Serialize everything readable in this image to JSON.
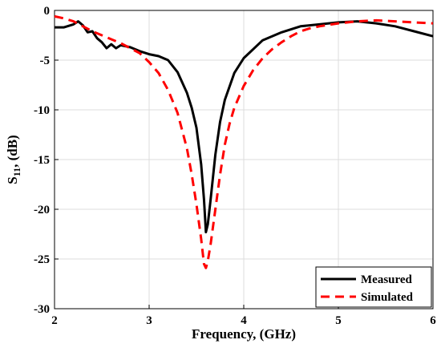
{
  "chart_data": {
    "type": "line",
    "xlabel": "Frequency, (GHz)",
    "ylabel": {
      "base": "S",
      "sub": "11",
      "rest": ", (dB)"
    },
    "xlim": [
      2,
      6
    ],
    "ylim": [
      -30,
      0
    ],
    "xticks": [
      2,
      3,
      4,
      5,
      6
    ],
    "yticks": [
      0,
      -5,
      -10,
      -15,
      -20,
      -25,
      -30
    ],
    "grid": true,
    "legend_position": "bottom-right",
    "series": [
      {
        "name": "Measured",
        "color": "#000000",
        "style": "solid",
        "x": [
          2.0,
          2.1,
          2.2,
          2.25,
          2.3,
          2.35,
          2.4,
          2.45,
          2.5,
          2.55,
          2.6,
          2.65,
          2.7,
          2.8,
          2.9,
          3.0,
          3.1,
          3.2,
          3.3,
          3.4,
          3.45,
          3.5,
          3.55,
          3.58,
          3.6,
          3.62,
          3.65,
          3.7,
          3.75,
          3.8,
          3.9,
          4.0,
          4.2,
          4.4,
          4.6,
          4.8,
          5.0,
          5.2,
          5.4,
          5.6,
          5.8,
          6.0
        ],
        "y": [
          -1.7,
          -1.7,
          -1.4,
          -1.1,
          -1.5,
          -2.2,
          -2.1,
          -2.8,
          -3.2,
          -3.8,
          -3.4,
          -3.8,
          -3.5,
          -3.7,
          -4.1,
          -4.4,
          -4.6,
          -5.0,
          -6.2,
          -8.3,
          -9.8,
          -11.8,
          -15.5,
          -19.0,
          -22.3,
          -21.5,
          -19.0,
          -14.5,
          -11.2,
          -9.0,
          -6.3,
          -4.8,
          -3.0,
          -2.2,
          -1.6,
          -1.4,
          -1.2,
          -1.1,
          -1.3,
          -1.6,
          -2.1,
          -2.6
        ]
      },
      {
        "name": "Simulated",
        "color": "#ff0000",
        "style": "dashed",
        "x": [
          2.0,
          2.1,
          2.2,
          2.3,
          2.4,
          2.5,
          2.6,
          2.7,
          2.8,
          2.9,
          3.0,
          3.1,
          3.2,
          3.3,
          3.4,
          3.45,
          3.5,
          3.55,
          3.58,
          3.6,
          3.62,
          3.65,
          3.7,
          3.75,
          3.8,
          3.85,
          3.9,
          4.0,
          4.1,
          4.2,
          4.3,
          4.4,
          4.5,
          4.6,
          4.7,
          4.8,
          5.0,
          5.2,
          5.4,
          5.6,
          5.8,
          6.0
        ],
        "y": [
          -0.6,
          -0.8,
          -1.1,
          -1.6,
          -2.1,
          -2.5,
          -2.9,
          -3.3,
          -3.8,
          -4.3,
          -5.2,
          -6.3,
          -8.0,
          -10.3,
          -13.9,
          -16.5,
          -19.5,
          -23.0,
          -25.5,
          -25.9,
          -25.2,
          -23.5,
          -20.0,
          -16.5,
          -13.5,
          -11.4,
          -9.8,
          -7.6,
          -6.0,
          -4.8,
          -3.9,
          -3.2,
          -2.6,
          -2.1,
          -1.8,
          -1.6,
          -1.3,
          -1.1,
          -1.0,
          -1.1,
          -1.2,
          -1.3
        ]
      }
    ]
  }
}
